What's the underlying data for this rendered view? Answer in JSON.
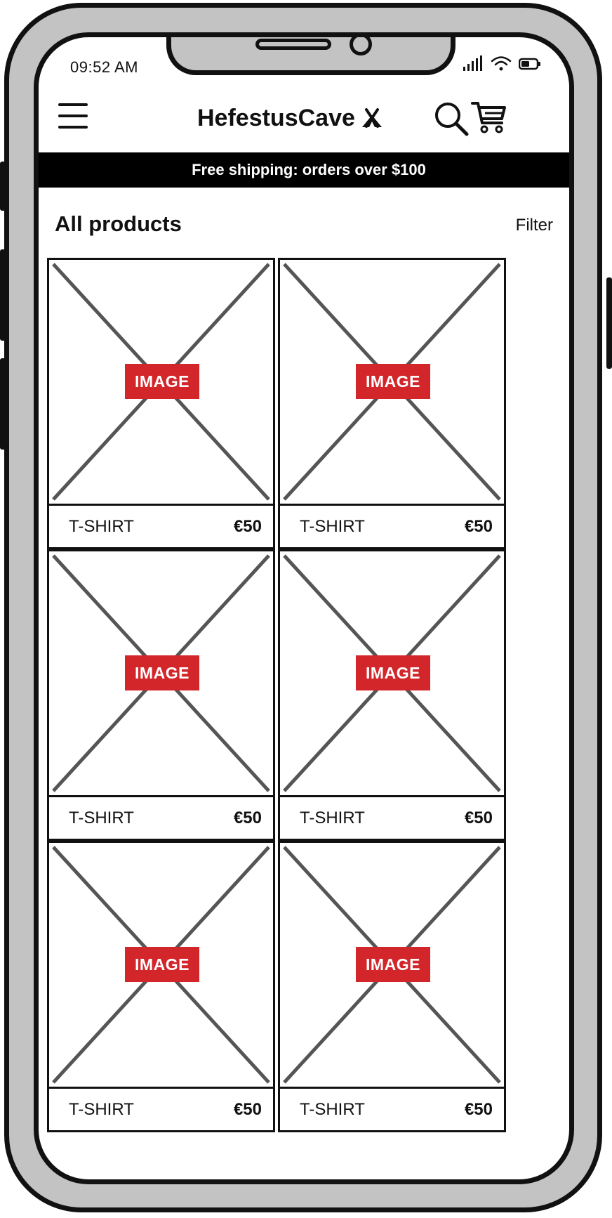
{
  "status_bar": {
    "time": "09:52 AM",
    "icons": [
      "signal-icon",
      "wifi-icon",
      "battery-icon"
    ]
  },
  "header": {
    "brand": "HefestusCave",
    "icons": [
      "menu-icon",
      "tent-icon",
      "search-icon",
      "cart-icon"
    ]
  },
  "banner": {
    "text": "Free shipping: orders over $100"
  },
  "page": {
    "title": "All products",
    "filter_label": "Filter"
  },
  "products": [
    {
      "image_label": "IMAGE",
      "name": "T-SHIRT",
      "price": "€50"
    },
    {
      "image_label": "IMAGE",
      "name": "T-SHIRT",
      "price": "€50"
    },
    {
      "image_label": "IMAGE",
      "name": "T-SHIRT",
      "price": "€50"
    },
    {
      "image_label": "IMAGE",
      "name": "T-SHIRT",
      "price": "€50"
    },
    {
      "image_label": "IMAGE",
      "name": "T-SHIRT",
      "price": "€50"
    },
    {
      "image_label": "IMAGE",
      "name": "T-SHIRT",
      "price": "€50"
    }
  ],
  "colors": {
    "frame": "#c3c3c3",
    "outline": "#111111",
    "banner_bg": "#000000",
    "image_label_bg": "#d2262b"
  }
}
